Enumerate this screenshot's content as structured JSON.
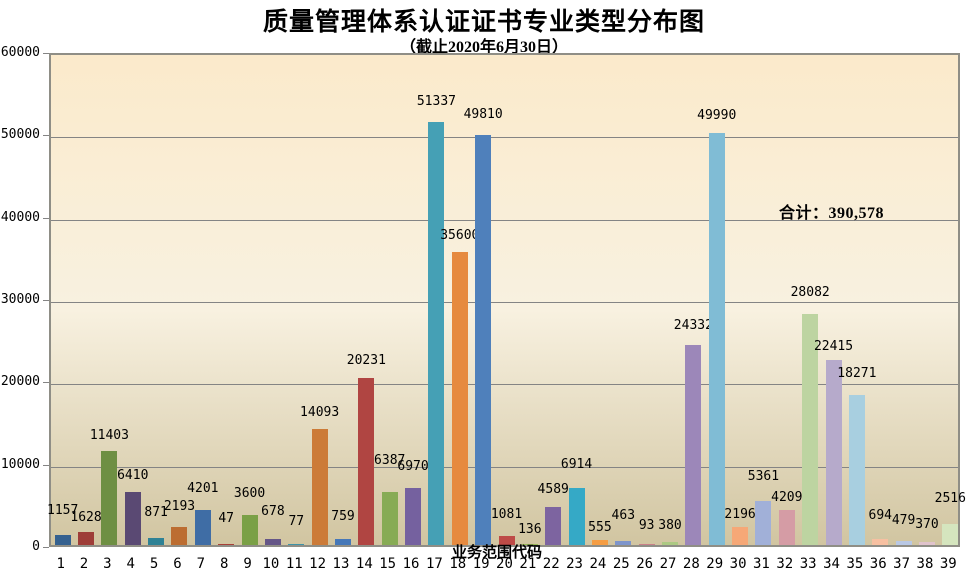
{
  "title": "质量管理体系认证证书专业类型分布图",
  "subtitle": "（截止2020年6月30日）",
  "total_label": "合计：390,578",
  "colors": {
    "page_bg": "#FFFFFF",
    "plot_bg_top": "#FBEACB",
    "plot_bg_mid": "#F8F1E0",
    "plot_bg_bottom": "#D1C5A1",
    "axis_border": "#8F8E86",
    "gridline": "#848484",
    "text": "#000000"
  },
  "chart_data": {
    "type": "bar",
    "title": "质量管理体系认证证书专业类型分布图",
    "subtitle": "（截止2020年6月30日）",
    "xlabel": "业务范围代码",
    "ylabel": "",
    "ylim": [
      0,
      60000
    ],
    "ytick_interval": 10000,
    "yticks": [
      0,
      10000,
      20000,
      30000,
      40000,
      50000,
      60000
    ],
    "grid": true,
    "legend": "none",
    "annotation_total": "合计：390,578",
    "categories": [
      "1",
      "2",
      "3",
      "4",
      "5",
      "6",
      "7",
      "8",
      "9",
      "10",
      "11",
      "12",
      "13",
      "14",
      "15",
      "16",
      "17",
      "18",
      "19",
      "20",
      "21",
      "22",
      "23",
      "24",
      "25",
      "26",
      "27",
      "28",
      "29",
      "30",
      "31",
      "32",
      "33",
      "34",
      "35",
      "36",
      "37",
      "38",
      "39"
    ],
    "values": [
      1157,
      1628,
      11403,
      6410,
      871,
      2193,
      4201,
      47,
      3600,
      678,
      77,
      14093,
      759,
      20231,
      6387,
      6970,
      51337,
      35600,
      49810,
      1081,
      136,
      4589,
      6914,
      555,
      463,
      93,
      380,
      24332,
      49990,
      2196,
      5361,
      4209,
      28082,
      22415,
      18271,
      694,
      479,
      370,
      2516
    ],
    "bar_colors": [
      "#35618F",
      "#9E3D38",
      "#6E8F43",
      "#5A4973",
      "#2F8295",
      "#BC6D31",
      "#3F6DA5",
      "#A84038",
      "#7AA046",
      "#655687",
      "#3E93A8",
      "#CC7B38",
      "#4678B8",
      "#B04542",
      "#87AB55",
      "#75619F",
      "#45A0B5",
      "#E68A3F",
      "#4F80BB",
      "#BE4B47",
      "#9ABA58",
      "#7D64A0",
      "#35A9C6",
      "#F59D43",
      "#7E95CB",
      "#CA8089",
      "#ACC983",
      "#9C87B9",
      "#80BCD5",
      "#F6A877",
      "#A1B0D8",
      "#D59CA5",
      "#BDD4A1",
      "#B6AACB",
      "#A8CFE0",
      "#F7C0A1",
      "#B9C8E4",
      "#E0C3CC",
      "#D5E5BE"
    ],
    "label_lifts": [
      17,
      7,
      8,
      9,
      18,
      13,
      14,
      18,
      14,
      20,
      15,
      9,
      15,
      10,
      24,
      14,
      13,
      9,
      13,
      14,
      7,
      10,
      16,
      5,
      18,
      11,
      9,
      12,
      10,
      5,
      17,
      5,
      14,
      6,
      14,
      16,
      13,
      10,
      18
    ]
  }
}
